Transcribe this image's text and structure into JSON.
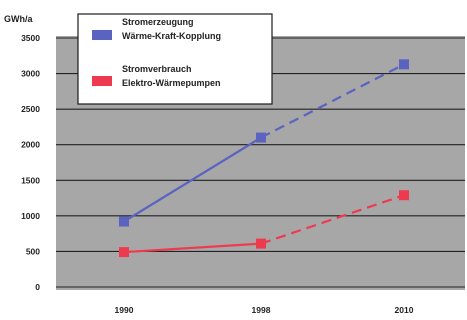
{
  "chart_data": {
    "type": "line",
    "ylabel": "GWh/a",
    "categories": [
      "1990",
      "1998",
      "2010"
    ],
    "ylim": [
      0,
      3500
    ],
    "yticks": [
      0,
      500,
      1000,
      1500,
      2000,
      2500,
      3000,
      3500
    ],
    "grid": true,
    "legend_position": "top-left",
    "plot_background": "#a7a7a7",
    "series": [
      {
        "name": [
          "Stromerzeugung",
          "Wärme-Kraft-Kopplung"
        ],
        "color": "#5a64c0",
        "values": [
          920,
          2100,
          3130
        ],
        "line_style": [
          "solid",
          "dashed"
        ]
      },
      {
        "name": [
          "Stromverbrauch",
          "Elektro-Wärmepumpen"
        ],
        "color": "#ee3a4f",
        "values": [
          490,
          610,
          1290
        ],
        "line_style": [
          "solid",
          "dashed"
        ]
      }
    ]
  }
}
